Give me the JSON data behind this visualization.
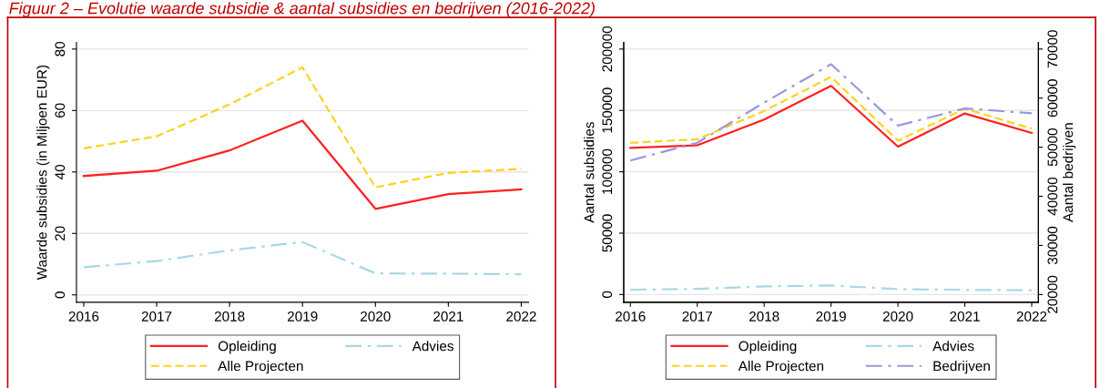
{
  "chart_data": [
    {
      "type": "line",
      "title": "Figuur 2 – Evolutie waarde subsidie & aantal subsidies en bedrijven (2016-2022)",
      "ylabel": "Waarde subsidies (in Miljoen EUR)",
      "x": [
        2016,
        2017,
        2018,
        2019,
        2020,
        2021,
        2022
      ],
      "xlim": [
        2015.9,
        2022.1
      ],
      "xticks": [
        2016,
        2017,
        2018,
        2019,
        2020,
        2021,
        2022
      ],
      "ylim": [
        -2.4,
        82.2
      ],
      "yticks": [
        0,
        20,
        40,
        60,
        80
      ],
      "grid": "y",
      "legend": "bottom",
      "series": [
        {
          "name": "Opleiding",
          "color": "#ff2020",
          "line_style": "solid",
          "values": [
            38.7,
            40.4,
            47,
            56.7,
            28,
            32.8,
            34.3
          ]
        },
        {
          "name": "Alle Projecten",
          "color": "#ffd21e",
          "line_style": "dashed",
          "values": [
            47.7,
            51.6,
            62,
            74,
            35,
            39.7,
            41
          ]
        },
        {
          "name": "Advies",
          "color": "#a8d8e6",
          "line_style": "dashdot",
          "values": [
            9,
            11,
            14.5,
            17.2,
            7,
            6.9,
            6.7
          ]
        }
      ]
    },
    {
      "type": "line",
      "ylabel": "Aantal subsidies",
      "y2label": "Aantal bedrijven",
      "x": [
        2016,
        2017,
        2018,
        2019,
        2020,
        2021,
        2022
      ],
      "xlim": [
        2015.9,
        2022.1
      ],
      "xticks": [
        2016,
        2017,
        2018,
        2019,
        2020,
        2021,
        2022
      ],
      "ylim": [
        -6300,
        205500
      ],
      "yticks": [
        0,
        50000,
        100000,
        150000,
        200000
      ],
      "y2lim": [
        18430,
        71370
      ],
      "y2ticks": [
        20000,
        30000,
        40000,
        50000,
        60000,
        70000
      ],
      "grid": "y",
      "legend": "bottom",
      "series": [
        {
          "name": "Opleiding",
          "color": "#ff2020",
          "line_style": "solid",
          "values": [
            119400,
            121600,
            142600,
            170000,
            120500,
            147500,
            131700
          ]
        },
        {
          "name": "Alle Projecten",
          "color": "#ffd21e",
          "line_style": "dashed",
          "values": [
            123500,
            126500,
            149500,
            177300,
            125400,
            151400,
            135200
          ]
        },
        {
          "name": "Advies",
          "color": "#a8d8e6",
          "line_style": "dashdot",
          "values": [
            3800,
            4600,
            6600,
            7400,
            4400,
            3800,
            3500
          ]
        },
        {
          "name": "Bedrijven",
          "color": "#9b98dc",
          "line_style": "dashdot",
          "axis": "y2",
          "values": [
            47300,
            50900,
            59100,
            66900,
            54400,
            57900,
            56900
          ]
        }
      ]
    }
  ]
}
